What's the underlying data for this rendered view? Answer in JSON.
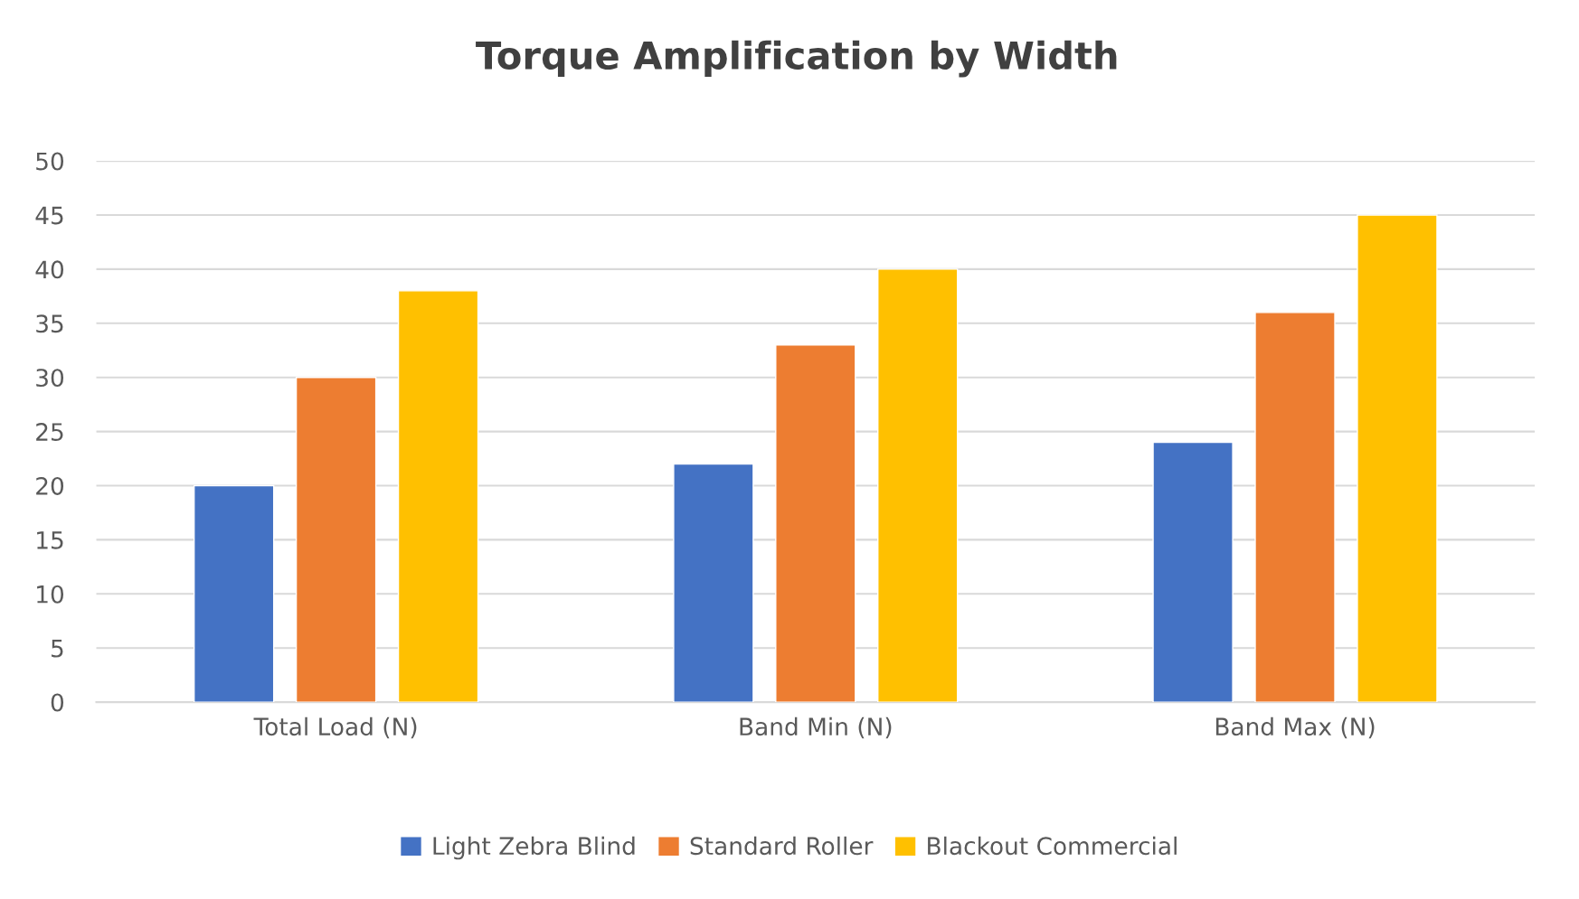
{
  "chart_data": {
    "type": "bar",
    "title": "Torque Amplification by Width",
    "categories": [
      "Total Load (N)",
      "Band Min (N)",
      "Band Max (N)"
    ],
    "series": [
      {
        "name": "Light Zebra Blind",
        "color": "#4472c4",
        "values": [
          20,
          22,
          24
        ]
      },
      {
        "name": "Standard Roller",
        "color": "#ed7d31",
        "values": [
          30,
          33,
          36
        ]
      },
      {
        "name": "Blackout Commercial",
        "color": "#ffc000",
        "values": [
          38,
          40,
          45
        ]
      }
    ],
    "ylim": [
      0,
      50
    ],
    "yticks": [
      0,
      5,
      10,
      15,
      20,
      25,
      30,
      35,
      40,
      45,
      50
    ],
    "grid": "y",
    "legend": "bottom"
  }
}
